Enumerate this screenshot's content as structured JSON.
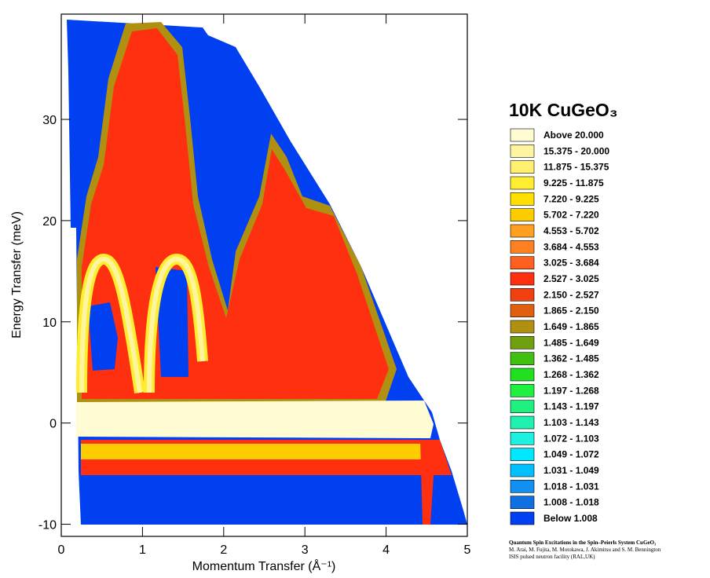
{
  "chart_data": {
    "type": "contour",
    "title": "10K CuGeO₃",
    "x_label": "Momentum Transfer (Å⁻¹)",
    "y_label": "Energy Transfer (meV)",
    "xlim": [
      0,
      5
    ],
    "ylim": [
      -11.2,
      40.4
    ],
    "xticks": [
      0,
      1,
      2,
      3,
      4,
      5
    ],
    "yticks": [
      -10,
      0,
      10,
      20,
      30
    ],
    "levels": [
      {
        "label": "Above   20.000",
        "color": "#fffbd2"
      },
      {
        "label": "15.375 - 20.000",
        "color": "#fff5a0"
      },
      {
        "label": "11.875 - 15.375",
        "color": "#fff070"
      },
      {
        "label": "9.225 - 11.875",
        "color": "#ffee30"
      },
      {
        "label": "7.220 -   9.225",
        "color": "#ffe000"
      },
      {
        "label": "5.702 -   7.220",
        "color": "#ffcc00"
      },
      {
        "label": "4.553 -   5.702",
        "color": "#ffa020"
      },
      {
        "label": "3.684 -   4.553",
        "color": "#ff8020"
      },
      {
        "label": "3.025 -   3.684",
        "color": "#ff6020"
      },
      {
        "label": "2.527 -   3.025",
        "color": "#ff3010"
      },
      {
        "label": "2.150 -   2.527",
        "color": "#f04010"
      },
      {
        "label": "1.865 -   2.150",
        "color": "#e06010"
      },
      {
        "label": "1.649 -   1.865",
        "color": "#b09010"
      },
      {
        "label": "1.485 -   1.649",
        "color": "#70a010"
      },
      {
        "label": "1.362 -   1.485",
        "color": "#40c010"
      },
      {
        "label": "1.268 -   1.362",
        "color": "#20e020"
      },
      {
        "label": "1.197 -   1.268",
        "color": "#20f040"
      },
      {
        "label": "1.143 -   1.197",
        "color": "#20f080"
      },
      {
        "label": "1.103 -   1.143",
        "color": "#20f0b0"
      },
      {
        "label": "1.072 -   1.103",
        "color": "#20f0e0"
      },
      {
        "label": "1.049 -   1.072",
        "color": "#00e8ff"
      },
      {
        "label": "1.031 -   1.049",
        "color": "#00c0ff"
      },
      {
        "label": "1.018 -   1.031",
        "color": "#1090f0"
      },
      {
        "label": "1.008 -   1.018",
        "color": "#1070e0"
      },
      {
        "label": "Below    1.008",
        "color": "#0040f0"
      }
    ],
    "citation": [
      "Quantum Spin Excitations in the Spin–Peierls System CuGeO₃",
      "M. Arai, M. Fujita, M. Motokawa, J. Akimitsu and S. M. Bennington",
      "ISIS pulsed neutron facility (RAL,UK)"
    ]
  }
}
